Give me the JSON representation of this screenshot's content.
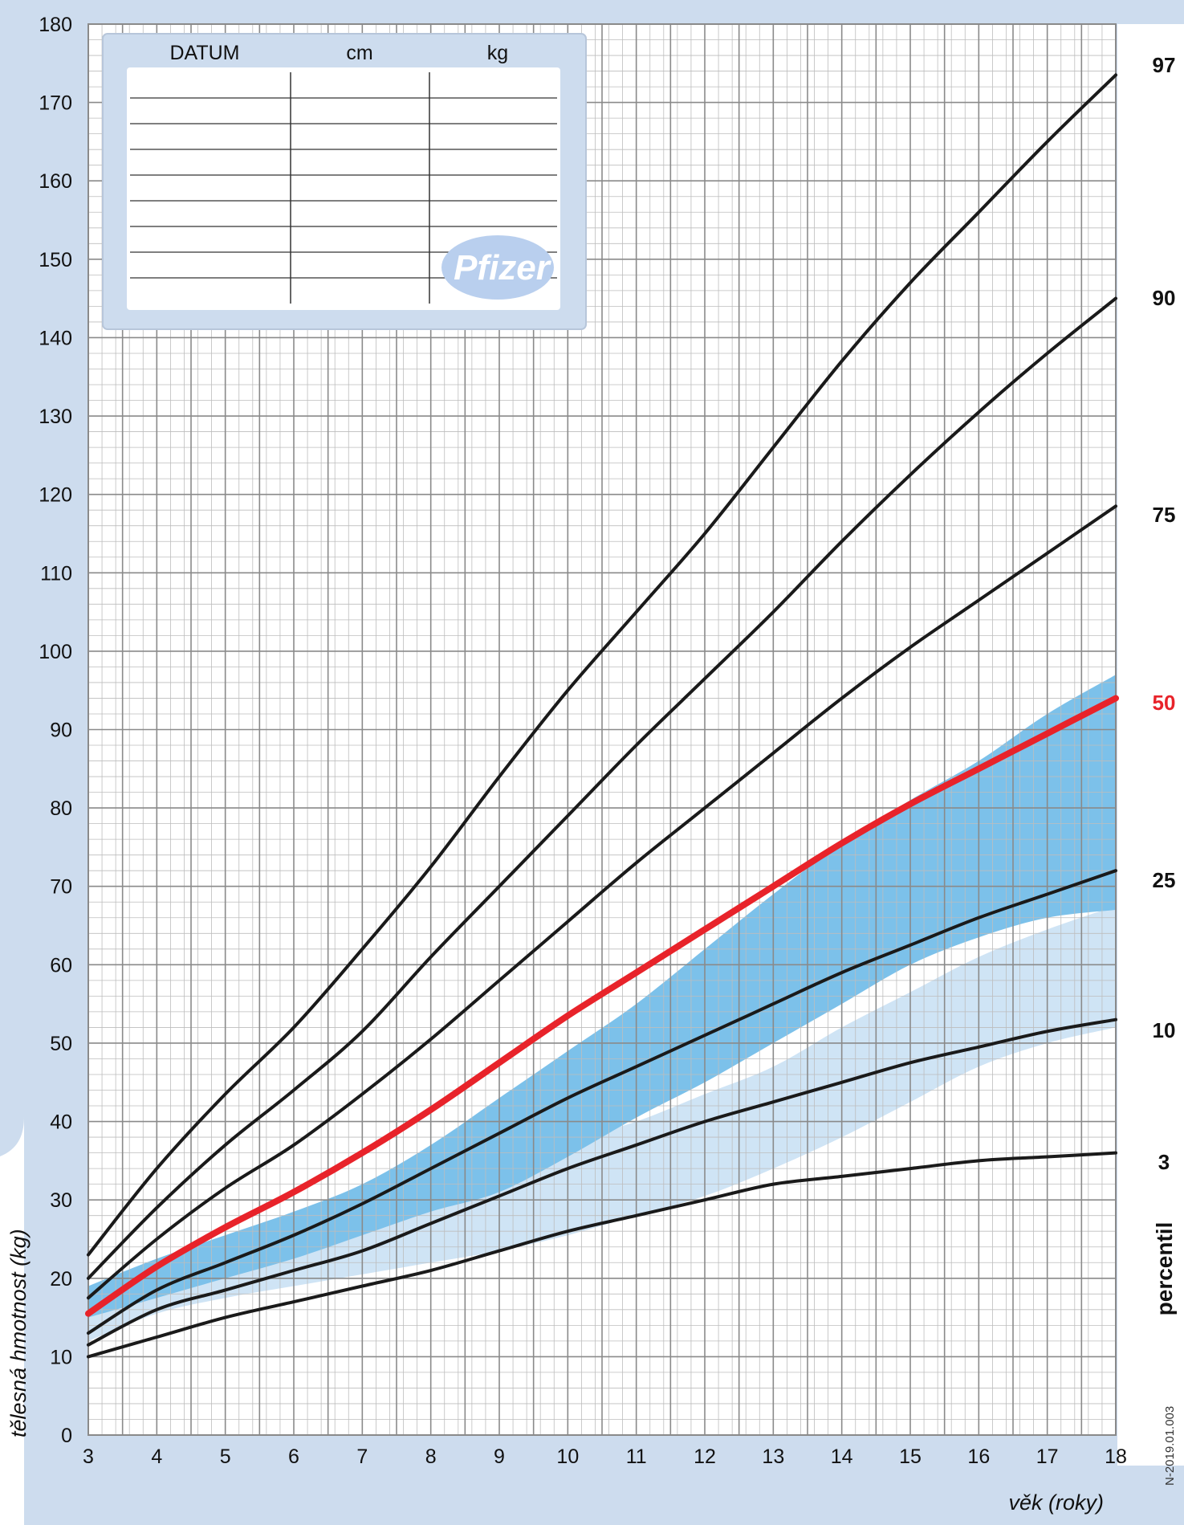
{
  "chart_data": {
    "type": "line",
    "xlabel": "věk (roky)",
    "ylabel": "tělesná hmotnost (kg)",
    "xlim": [
      3,
      18
    ],
    "ylim": [
      0,
      180
    ],
    "x_ticks": [
      3,
      4,
      5,
      6,
      7,
      8,
      9,
      10,
      11,
      12,
      13,
      14,
      15,
      16,
      17,
      18
    ],
    "y_ticks": [
      0,
      10,
      20,
      30,
      40,
      50,
      60,
      70,
      80,
      90,
      100,
      110,
      120,
      130,
      140,
      150,
      160,
      170,
      180
    ],
    "x": [
      3,
      4,
      5,
      6,
      7,
      8,
      9,
      10,
      11,
      12,
      13,
      14,
      15,
      16,
      17,
      18
    ],
    "grid": true,
    "legend_title": "percentil",
    "series": [
      {
        "name": "97",
        "color": "#1a1a1a",
        "values": [
          23,
          34,
          43.5,
          52,
          62,
          72.5,
          84,
          95,
          105,
          115,
          126,
          137,
          147,
          156,
          165,
          173.5
        ]
      },
      {
        "name": "90",
        "color": "#1a1a1a",
        "values": [
          20,
          29,
          37,
          44,
          51.5,
          61,
          70,
          79,
          88,
          96.5,
          105,
          114,
          122.5,
          130.5,
          138,
          145
        ]
      },
      {
        "name": "75",
        "color": "#1a1a1a",
        "values": [
          17.5,
          25,
          31.5,
          37,
          43.5,
          50.5,
          58,
          65.5,
          73,
          80,
          87,
          94,
          100.5,
          106.5,
          112.5,
          118.5
        ]
      },
      {
        "name": "50",
        "color": "#e8232a",
        "values": [
          15.5,
          21.5,
          26.5,
          31,
          36,
          41.5,
          47.5,
          53.5,
          59,
          64.5,
          70,
          75.5,
          80.5,
          85,
          89.5,
          94
        ]
      },
      {
        "name": "25",
        "color": "#1a1a1a",
        "values": [
          13,
          18.5,
          22,
          25.5,
          29.5,
          34,
          38.5,
          43,
          47,
          51,
          55,
          59,
          62.5,
          66,
          69,
          72
        ]
      },
      {
        "name": "10",
        "color": "#1a1a1a",
        "values": [
          11.5,
          16,
          18.5,
          21,
          23.5,
          27,
          30.5,
          34,
          37,
          40,
          42.5,
          45,
          47.5,
          49.5,
          51.5,
          53
        ]
      },
      {
        "name": "3",
        "color": "#1a1a1a",
        "values": [
          10,
          12.5,
          15,
          17,
          19,
          21,
          23.5,
          26,
          28,
          30,
          32,
          33,
          34,
          35,
          35.5,
          36
        ]
      }
    ],
    "bands": [
      {
        "kind": "light-band",
        "color": "#cfe4f5",
        "upper": [
          16,
          21.5,
          24,
          27,
          29.5,
          32,
          34.5,
          37.5,
          40,
          43.5,
          47,
          52,
          56.5,
          61,
          64.5,
          67.5
        ],
        "lower": [
          12,
          15.5,
          17.5,
          19,
          20.5,
          22,
          23.5,
          25.5,
          28,
          30.5,
          34,
          38,
          42.5,
          47,
          50,
          52
        ]
      },
      {
        "kind": "dark-band",
        "color": "#7cc1ea",
        "upper": [
          19,
          22.5,
          25.5,
          28.5,
          32,
          37,
          43,
          49,
          55,
          62,
          69,
          75.5,
          81,
          86,
          92,
          97
        ],
        "lower": [
          15,
          17.5,
          20,
          22.5,
          25.5,
          28.5,
          31,
          35.5,
          40.5,
          45,
          50,
          55,
          60,
          63.5,
          66,
          67
        ]
      }
    ]
  },
  "record_table": {
    "headers": [
      "DATUM",
      "cm",
      "kg"
    ]
  },
  "logo": {
    "text": "Pfizer"
  },
  "doc_code": "N-2019.01.003",
  "colors": {
    "frame": "#cddcee",
    "grid_major": "#8a8a8a",
    "grid_minor": "#bdbdbd",
    "median": "#e8232a",
    "curve": "#1a1a1a",
    "logo_bg": "#b9cfee"
  }
}
